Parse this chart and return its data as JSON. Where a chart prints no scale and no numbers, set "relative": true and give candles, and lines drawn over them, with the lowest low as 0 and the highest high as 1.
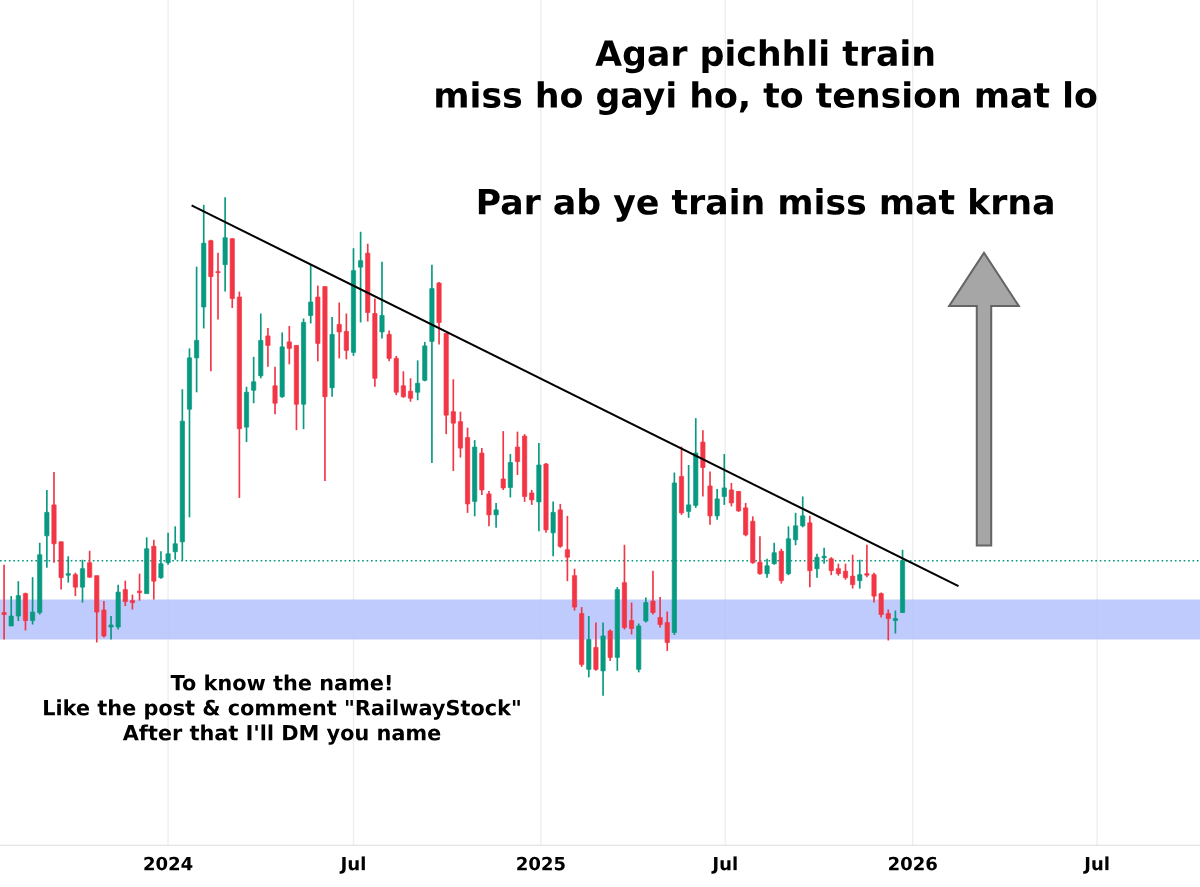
{
  "chart_data": {
    "type": "candlestick",
    "title": "Agar pichhli train\nmiss ho gayi ho, to tension mat lo",
    "subtitle": "Par ab ye train miss mat krna",
    "annotations": [
      "To know the name!\nLike the post & comment \"RailwayStock\"\nAfter that I'll DM you name"
    ],
    "relative": true,
    "x": [
      "2023-07-24",
      "2023-07-31",
      "2023-08-07",
      "2023-08-14",
      "2023-08-21",
      "2023-08-28",
      "2023-09-04",
      "2023-09-11",
      "2023-09-18",
      "2023-09-25",
      "2023-10-02",
      "2023-10-09",
      "2023-10-16",
      "2023-10-23",
      "2023-10-30",
      "2023-11-06",
      "2023-11-13",
      "2023-11-20",
      "2023-11-27",
      "2023-12-04",
      "2023-12-11",
      "2023-12-18",
      "2023-12-25",
      "2024-01-01",
      "2024-01-08",
      "2024-01-15",
      "2024-01-22",
      "2024-01-29",
      "2024-02-05",
      "2024-02-12",
      "2024-02-19",
      "2024-02-26",
      "2024-03-04",
      "2024-03-11",
      "2024-03-18",
      "2024-03-25",
      "2024-04-01",
      "2024-04-08",
      "2024-04-15",
      "2024-04-22",
      "2024-04-29",
      "2024-05-06",
      "2024-05-13",
      "2024-05-20",
      "2024-05-27",
      "2024-06-03",
      "2024-06-10",
      "2024-06-17",
      "2024-06-24",
      "2024-07-01",
      "2024-07-08",
      "2024-07-15",
      "2024-07-22",
      "2024-07-29",
      "2024-08-05",
      "2024-08-12",
      "2024-08-19",
      "2024-08-26",
      "2024-09-02",
      "2024-09-09",
      "2024-09-16",
      "2024-09-23",
      "2024-09-30",
      "2024-10-07",
      "2024-10-14",
      "2024-10-21",
      "2024-10-28",
      "2024-11-04",
      "2024-11-11",
      "2024-11-18",
      "2024-11-25",
      "2024-12-02",
      "2024-12-09",
      "2024-12-16",
      "2024-12-23",
      "2024-12-30",
      "2025-01-06",
      "2025-01-13",
      "2025-01-20",
      "2025-01-27",
      "2025-02-03",
      "2025-02-10",
      "2025-02-17",
      "2025-02-24",
      "2025-03-03",
      "2025-03-10",
      "2025-03-17",
      "2025-03-24",
      "2025-03-31",
      "2025-04-07",
      "2025-04-14",
      "2025-04-21",
      "2025-04-28",
      "2025-05-05",
      "2025-05-12",
      "2025-05-19",
      "2025-05-26",
      "2025-06-02",
      "2025-06-09",
      "2025-06-16",
      "2025-06-23",
      "2025-06-30",
      "2025-07-07",
      "2025-07-14",
      "2025-07-21",
      "2025-07-28",
      "2025-08-04",
      "2025-08-11",
      "2025-08-18",
      "2025-08-25",
      "2025-09-01",
      "2025-09-08",
      "2025-09-15",
      "2025-09-22",
      "2025-09-29",
      "2025-10-06",
      "2025-10-13",
      "2025-10-20",
      "2025-10-27",
      "2025-11-03",
      "2025-11-10",
      "2025-11-17",
      "2025-11-24",
      "2025-12-01",
      "2025-12-08",
      "2025-12-15",
      "2025-12-22"
    ],
    "ohlc": [
      [
        0.167,
        0.263,
        0.113,
        0.163
      ],
      [
        0.14,
        0.2,
        0.14,
        0.16
      ],
      [
        0.16,
        0.23,
        0.15,
        0.201
      ],
      [
        0.205,
        0.207,
        0.131,
        0.151
      ],
      [
        0.151,
        0.238,
        0.143,
        0.168
      ],
      [
        0.167,
        0.307,
        0.163,
        0.283
      ],
      [
        0.321,
        0.413,
        0.257,
        0.368
      ],
      [
        0.383,
        0.449,
        0.267,
        0.305
      ],
      [
        0.309,
        0.309,
        0.213,
        0.237
      ],
      [
        0.242,
        0.28,
        0.227,
        0.245
      ],
      [
        0.243,
        0.247,
        0.2,
        0.218
      ],
      [
        0.218,
        0.273,
        0.187,
        0.255
      ],
      [
        0.267,
        0.291,
        0.237,
        0.238
      ],
      [
        0.241,
        0.241,
        0.107,
        0.168
      ],
      [
        0.172,
        0.19,
        0.117,
        0.12
      ],
      [
        0.138,
        0.16,
        0.113,
        0.142
      ],
      [
        0.138,
        0.223,
        0.133,
        0.208
      ],
      [
        0.213,
        0.231,
        0.18,
        0.189
      ],
      [
        0.191,
        0.203,
        0.173,
        0.187
      ],
      [
        0.21,
        0.245,
        0.191,
        0.207
      ],
      [
        0.205,
        0.318,
        0.205,
        0.295
      ],
      [
        0.3,
        0.313,
        0.193,
        0.23
      ],
      [
        0.237,
        0.29,
        0.235,
        0.265
      ],
      [
        0.267,
        0.327,
        0.263,
        0.285
      ],
      [
        0.289,
        0.34,
        0.273,
        0.305
      ],
      [
        0.309,
        0.615,
        0.271,
        0.551
      ],
      [
        0.575,
        0.697,
        0.358,
        0.678
      ],
      [
        0.678,
        0.861,
        0.609,
        0.713
      ],
      [
        0.78,
        0.985,
        0.737,
        0.908
      ],
      [
        0.913,
        0.915,
        0.651,
        0.841
      ],
      [
        0.851,
        0.889,
        0.755,
        0.849
      ],
      [
        0.865,
        1.0,
        0.811,
        0.919
      ],
      [
        0.917,
        0.918,
        0.778,
        0.797
      ],
      [
        0.8,
        0.811,
        0.397,
        0.536
      ],
      [
        0.539,
        0.62,
        0.509,
        0.609
      ],
      [
        0.613,
        0.68,
        0.587,
        0.63
      ],
      [
        0.642,
        0.767,
        0.637,
        0.713
      ],
      [
        0.722,
        0.738,
        0.66,
        0.703
      ],
      [
        0.622,
        0.66,
        0.565,
        0.587
      ],
      [
        0.6,
        0.729,
        0.598,
        0.7
      ],
      [
        0.71,
        0.742,
        0.665,
        0.697
      ],
      [
        0.703,
        0.703,
        0.533,
        0.585
      ],
      [
        0.585,
        0.757,
        0.535,
        0.749
      ],
      [
        0.763,
        0.865,
        0.747,
        0.79
      ],
      [
        0.8,
        0.823,
        0.671,
        0.707
      ],
      [
        0.821,
        0.821,
        0.431,
        0.6
      ],
      [
        0.618,
        0.76,
        0.6,
        0.725
      ],
      [
        0.745,
        0.789,
        0.677,
        0.73
      ],
      [
        0.731,
        0.767,
        0.675,
        0.693
      ],
      [
        0.689,
        0.898,
        0.682,
        0.853
      ],
      [
        0.86,
        0.931,
        0.749,
        0.873
      ],
      [
        0.888,
        0.907,
        0.751,
        0.769
      ],
      [
        0.767,
        0.797,
        0.62,
        0.637
      ],
      [
        0.73,
        0.871,
        0.717,
        0.763
      ],
      [
        0.725,
        0.733,
        0.671,
        0.677
      ],
      [
        0.677,
        0.682,
        0.603,
        0.609
      ],
      [
        0.622,
        0.651,
        0.598,
        0.6
      ],
      [
        0.611,
        0.637,
        0.59,
        0.597
      ],
      [
        0.609,
        0.673,
        0.593,
        0.627
      ],
      [
        0.633,
        0.71,
        0.631,
        0.702
      ],
      [
        0.711,
        0.865,
        0.467,
        0.817
      ],
      [
        0.828,
        0.83,
        0.705,
        0.749
      ],
      [
        0.727,
        0.727,
        0.525,
        0.563
      ],
      [
        0.57,
        0.635,
        0.451,
        0.547
      ],
      [
        0.55,
        0.57,
        0.478,
        0.497
      ],
      [
        0.518,
        0.538,
        0.367,
        0.385
      ],
      [
        0.39,
        0.513,
        0.36,
        0.499
      ],
      [
        0.487,
        0.497,
        0.403,
        0.413
      ],
      [
        0.405,
        0.411,
        0.34,
        0.363
      ],
      [
        0.363,
        0.387,
        0.337,
        0.373
      ],
      [
        0.435,
        0.531,
        0.413,
        0.417
      ],
      [
        0.418,
        0.485,
        0.398,
        0.468
      ],
      [
        0.499,
        0.53,
        0.443,
        0.47
      ],
      [
        0.521,
        0.525,
        0.389,
        0.4
      ],
      [
        0.407,
        0.413,
        0.383,
        0.393
      ],
      [
        0.389,
        0.507,
        0.33,
        0.463
      ],
      [
        0.465,
        0.467,
        0.327,
        0.333
      ],
      [
        0.327,
        0.39,
        0.28,
        0.368
      ],
      [
        0.373,
        0.385,
        0.297,
        0.3
      ],
      [
        0.293,
        0.361,
        0.23,
        0.278
      ],
      [
        0.241,
        0.255,
        0.171,
        0.178
      ],
      [
        0.165,
        0.178,
        0.058,
        0.063
      ],
      [
        0.053,
        0.16,
        0.037,
        0.113
      ],
      [
        0.097,
        0.147,
        0.05,
        0.053
      ],
      [
        0.05,
        0.147,
        0.0,
        0.12
      ],
      [
        0.13,
        0.133,
        0.07,
        0.077
      ],
      [
        0.077,
        0.218,
        0.05,
        0.213
      ],
      [
        0.227,
        0.303,
        0.133,
        0.137
      ],
      [
        0.151,
        0.187,
        0.123,
        0.135
      ],
      [
        0.053,
        0.145,
        0.047,
        0.14
      ],
      [
        0.15,
        0.197,
        0.147,
        0.187
      ],
      [
        0.19,
        0.251,
        0.163,
        0.167
      ],
      [
        0.157,
        0.198,
        0.137,
        0.143
      ],
      [
        0.147,
        0.169,
        0.09,
        0.107
      ],
      [
        0.127,
        0.448,
        0.122,
        0.427
      ],
      [
        0.44,
        0.5,
        0.363,
        0.367
      ],
      [
        0.37,
        0.463,
        0.357,
        0.383
      ],
      [
        0.382,
        0.557,
        0.377,
        0.487
      ],
      [
        0.509,
        0.533,
        0.4,
        0.458
      ],
      [
        0.421,
        0.45,
        0.343,
        0.361
      ],
      [
        0.361,
        0.415,
        0.353,
        0.395
      ],
      [
        0.4,
        0.485,
        0.383,
        0.417
      ],
      [
        0.413,
        0.427,
        0.38,
        0.387
      ],
      [
        0.41,
        0.411,
        0.369,
        0.371
      ],
      [
        0.377,
        0.387,
        0.32,
        0.323
      ],
      [
        0.35,
        0.36,
        0.265,
        0.267
      ],
      [
        0.268,
        0.32,
        0.243,
        0.245
      ],
      [
        0.245,
        0.275,
        0.237,
        0.261
      ],
      [
        0.265,
        0.307,
        0.263,
        0.287
      ],
      [
        0.29,
        0.295,
        0.225,
        0.231
      ],
      [
        0.245,
        0.34,
        0.242,
        0.315
      ],
      [
        0.313,
        0.367,
        0.302,
        0.341
      ],
      [
        0.341,
        0.4,
        0.338,
        0.361
      ],
      [
        0.347,
        0.361,
        0.218,
        0.251
      ],
      [
        0.255,
        0.285,
        0.237,
        0.278
      ],
      [
        0.277,
        0.297,
        0.265,
        0.28
      ],
      [
        0.275,
        0.278,
        0.242,
        0.251
      ],
      [
        0.255,
        0.265,
        0.241,
        0.245
      ],
      [
        0.25,
        0.265,
        0.233,
        0.237
      ],
      [
        0.24,
        0.283,
        0.215,
        0.223
      ],
      [
        0.231,
        0.273,
        0.215,
        0.243
      ],
      [
        0.245,
        0.303,
        0.238,
        0.242
      ],
      [
        0.243,
        0.247,
        0.187,
        0.2
      ],
      [
        0.205,
        0.207,
        0.157,
        0.163
      ],
      [
        0.165,
        0.173,
        0.111,
        0.155
      ],
      [
        0.151,
        0.171,
        0.125,
        0.155
      ],
      [
        0.167,
        0.293,
        0.167,
        0.271
      ]
    ],
    "series": [
      {
        "type": "line",
        "color": "#000000",
        "x": [
          "2024-01-25",
          "2026-02-14"
        ],
        "values": [
          0.983,
          0.221
        ]
      }
    ],
    "xlim": [
      "2023-07-20",
      "2026-10-10"
    ],
    "xticks": [
      {
        "value": "2024-01-01",
        "label": "2024"
      },
      {
        "value": "2024-07-01",
        "label": "Jul"
      },
      {
        "value": "2025-01-01",
        "label": "2025"
      },
      {
        "value": "2025-07-01",
        "label": "Jul"
      },
      {
        "value": "2026-01-01",
        "label": "2026"
      },
      {
        "value": "2026-07-01",
        "label": "Jul"
      }
    ],
    "grid": "x",
    "ref_lines": [
      {
        "axis": "y",
        "value": 0.271,
        "color": "#089981",
        "line_style": "dotted"
      }
    ],
    "bands": [
      {
        "axis": "y",
        "from": 0.113,
        "to": 0.193,
        "color": "#b3c2fb"
      }
    ]
  }
}
